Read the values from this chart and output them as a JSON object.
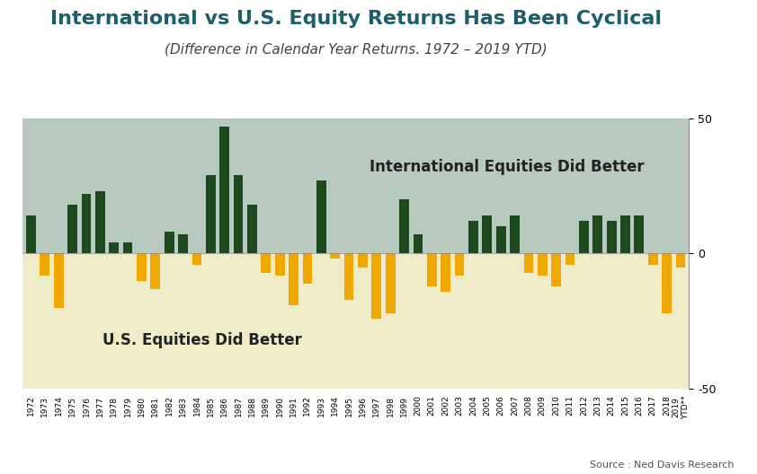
{
  "title": "International vs U.S. Equity Returns Has Been Cyclical",
  "subtitle": "(Difference in Calendar Year Returns. 1972 – 2019 YTD)",
  "source": "Source : Ned Davis Research",
  "label_positive": "International Equities Did Better",
  "label_negative": "U.S. Equities Did Better",
  "bg_positive": "#b8c9bf",
  "bg_negative": "#f0ecca",
  "bar_color_positive": "#1c4a1c",
  "bar_color_negative": "#f0a800",
  "title_color": "#1a5f6a",
  "subtitle_color": "#444444",
  "ylim": [
    -50,
    50
  ],
  "yticks": [
    -50,
    0,
    50
  ],
  "years": [
    "1972",
    "1973",
    "1974",
    "1975",
    "1976",
    "1977",
    "1978",
    "1979",
    "1980",
    "1981",
    "1982",
    "1983",
    "1984",
    "1985",
    "1986",
    "1987",
    "1988",
    "1989",
    "1990",
    "1991",
    "1992",
    "1993",
    "1994",
    "1995",
    "1996",
    "1997",
    "1998",
    "1999",
    "2000",
    "2001",
    "2002",
    "2003",
    "2004",
    "2005",
    "2006",
    "2007",
    "2008",
    "2009",
    "2010",
    "2011",
    "2012",
    "2013",
    "2014",
    "2015",
    "2016",
    "2017",
    "2018",
    "2019\nYTD**"
  ],
  "values": [
    14,
    -8,
    -20,
    18,
    22,
    23,
    4,
    4,
    -10,
    -13,
    8,
    7,
    -4,
    29,
    47,
    29,
    18,
    -7,
    -8,
    -19,
    -11,
    27,
    -2,
    -17,
    -5,
    -24,
    -22,
    20,
    7,
    -12,
    -14,
    -8,
    12,
    14,
    10,
    14,
    -7,
    -8,
    -12,
    -4,
    12,
    14,
    12,
    14,
    14,
    -4,
    -22,
    -5
  ],
  "title_fontsize": 16,
  "subtitle_fontsize": 11,
  "label_fontsize": 12
}
